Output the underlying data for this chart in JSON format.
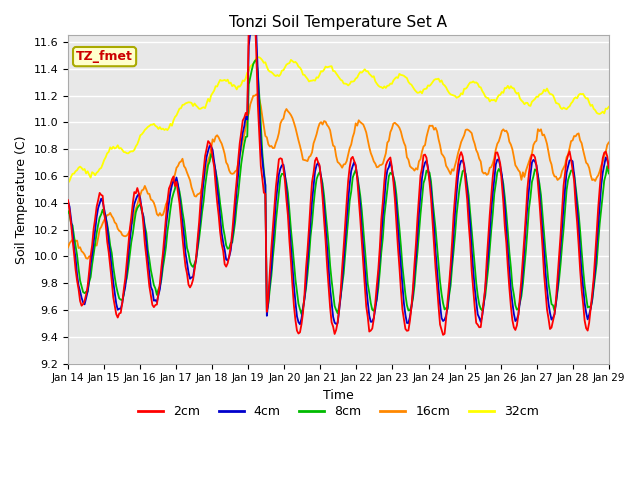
{
  "title": "Tonzi Soil Temperature Set A",
  "xlabel": "Time",
  "ylabel": "Soil Temperature (C)",
  "ylim": [
    9.2,
    11.65
  ],
  "xtick_labels": [
    "Jan 14",
    "Jan 15",
    "Jan 16",
    "Jan 17",
    "Jan 18",
    "Jan 19",
    "Jan 20",
    "Jan 21",
    "Jan 22",
    "Jan 23",
    "Jan 24",
    "Jan 25",
    "Jan 26",
    "Jan 27",
    "Jan 28",
    "Jan 29"
  ],
  "colors": {
    "2cm": "#ff0000",
    "4cm": "#0000cc",
    "8cm": "#00bb00",
    "16cm": "#ff8800",
    "32cm": "#ffff00"
  },
  "legend_label": "TZ_fmet"
}
